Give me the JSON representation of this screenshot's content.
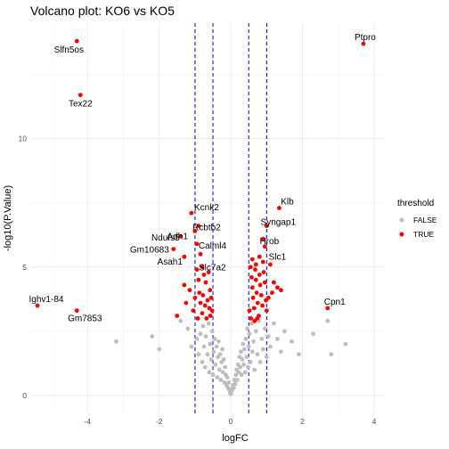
{
  "chart_data": {
    "type": "scatter",
    "title": "Volcano plot: KO6 vs KO5",
    "xlabel": "logFC",
    "ylabel": "-log10(P.Value)",
    "xlim": [
      -5.6,
      4.3
    ],
    "ylim": [
      -0.7,
      14.5
    ],
    "xticks": [
      -4,
      -2,
      0,
      2,
      4
    ],
    "yticks": [
      0,
      5,
      10
    ],
    "grid": true,
    "vlines": [
      {
        "x": -1.0,
        "color": "#00008b"
      },
      {
        "x": -0.5,
        "color": "#0000ff"
      },
      {
        "x": 0.5,
        "color": "#0000ff"
      },
      {
        "x": 1.0,
        "color": "#00008b"
      }
    ],
    "legend": {
      "title": "threshold",
      "placement": "right",
      "entries": [
        {
          "label": "FALSE",
          "color": "#bebebe"
        },
        {
          "label": "TRUE",
          "color": "#ff0000"
        }
      ]
    },
    "series": [
      {
        "name": "FALSE",
        "color": "#bebebe",
        "points": [
          [
            -3.2,
            2.1
          ],
          [
            -2.2,
            2.3
          ],
          [
            -2.0,
            1.8
          ],
          [
            -1.4,
            2.9
          ],
          [
            -1.2,
            2.6
          ],
          [
            -1.1,
            1.9
          ],
          [
            -0.95,
            2.2
          ],
          [
            -0.9,
            1.6
          ],
          [
            -0.85,
            2.4
          ],
          [
            -0.8,
            1.3
          ],
          [
            -0.78,
            2.7
          ],
          [
            -0.75,
            1.9
          ],
          [
            -0.72,
            1.1
          ],
          [
            -0.7,
            2.3
          ],
          [
            -0.65,
            1.6
          ],
          [
            -0.62,
            2.8
          ],
          [
            -0.6,
            0.9
          ],
          [
            -0.58,
            2.0
          ],
          [
            -0.55,
            1.4
          ],
          [
            -0.52,
            2.5
          ],
          [
            -0.5,
            0.8
          ],
          [
            -0.48,
            1.7
          ],
          [
            -0.45,
            2.2
          ],
          [
            -0.43,
            1.2
          ],
          [
            -0.4,
            1.9
          ],
          [
            -0.38,
            0.7
          ],
          [
            -0.36,
            1.5
          ],
          [
            -0.34,
            2.1
          ],
          [
            -0.32,
            1.0
          ],
          [
            -0.3,
            1.6
          ],
          [
            -0.28,
            0.6
          ],
          [
            -0.26,
            1.3
          ],
          [
            -0.24,
            1.8
          ],
          [
            -0.22,
            0.9
          ],
          [
            -0.2,
            1.4
          ],
          [
            -0.18,
            0.5
          ],
          [
            -0.16,
            1.1
          ],
          [
            -0.14,
            0.8
          ],
          [
            -0.12,
            0.4
          ],
          [
            -0.1,
            0.7
          ],
          [
            -0.08,
            0.3
          ],
          [
            -0.06,
            0.5
          ],
          [
            -0.04,
            0.2
          ],
          [
            -0.02,
            0.1
          ],
          [
            0.0,
            0.05
          ],
          [
            0.02,
            0.15
          ],
          [
            0.04,
            0.25
          ],
          [
            0.06,
            0.4
          ],
          [
            0.08,
            0.3
          ],
          [
            0.1,
            0.6
          ],
          [
            0.12,
            0.45
          ],
          [
            0.14,
            0.8
          ],
          [
            0.16,
            1.0
          ],
          [
            0.18,
            0.6
          ],
          [
            0.2,
            1.2
          ],
          [
            0.22,
            0.9
          ],
          [
            0.24,
            1.5
          ],
          [
            0.26,
            1.1
          ],
          [
            0.28,
            1.7
          ],
          [
            0.3,
            0.8
          ],
          [
            0.32,
            1.4
          ],
          [
            0.34,
            2.0
          ],
          [
            0.36,
            1.2
          ],
          [
            0.38,
            1.8
          ],
          [
            0.4,
            0.9
          ],
          [
            0.42,
            2.2
          ],
          [
            0.44,
            1.5
          ],
          [
            0.46,
            2.6
          ],
          [
            0.48,
            1.1
          ],
          [
            0.5,
            1.9
          ],
          [
            0.52,
            2.4
          ],
          [
            0.55,
            1.3
          ],
          [
            0.58,
            2.8
          ],
          [
            0.6,
            1.7
          ],
          [
            0.63,
            2.1
          ],
          [
            0.66,
            1.0
          ],
          [
            0.7,
            2.5
          ],
          [
            0.74,
            1.6
          ],
          [
            0.78,
            2.9
          ],
          [
            0.82,
            1.3
          ],
          [
            0.86,
            2.2
          ],
          [
            0.9,
            1.8
          ],
          [
            0.95,
            2.6
          ],
          [
            1.0,
            1.5
          ],
          [
            1.05,
            2.3
          ],
          [
            1.1,
            1.9
          ],
          [
            1.2,
            2.8
          ],
          [
            1.3,
            2.2
          ],
          [
            1.4,
            1.7
          ],
          [
            1.5,
            2.5
          ],
          [
            1.7,
            2.1
          ],
          [
            1.9,
            1.6
          ],
          [
            2.3,
            2.4
          ],
          [
            2.7,
            2.9
          ],
          [
            2.8,
            1.6
          ],
          [
            3.2,
            2.0
          ]
        ]
      },
      {
        "name": "TRUE",
        "color": "#ff0000",
        "points": [
          [
            -4.3,
            13.8
          ],
          [
            -4.2,
            11.7
          ],
          [
            -5.4,
            3.5
          ],
          [
            -4.3,
            3.3
          ],
          [
            3.7,
            13.7
          ],
          [
            2.7,
            3.4
          ],
          [
            -1.1,
            7.1
          ],
          [
            -1.0,
            6.4
          ],
          [
            -0.9,
            6.6
          ],
          [
            -1.4,
            6.2
          ],
          [
            -1.6,
            5.7
          ],
          [
            -1.3,
            5.4
          ],
          [
            1.35,
            7.3
          ],
          [
            1.0,
            6.6
          ],
          [
            0.9,
            6.1
          ],
          [
            0.95,
            5.8
          ],
          [
            -1.3,
            4.3
          ],
          [
            -1.15,
            4.1
          ],
          [
            -1.25,
            3.6
          ],
          [
            -1.5,
            3.1
          ],
          [
            -0.95,
            5.9
          ],
          [
            -0.85,
            5.5
          ],
          [
            -0.8,
            5.0
          ],
          [
            -0.75,
            4.7
          ],
          [
            -0.7,
            4.4
          ],
          [
            -0.62,
            4.8
          ],
          [
            -0.58,
            4.1
          ],
          [
            -0.55,
            3.8
          ],
          [
            -0.52,
            3.3
          ],
          [
            -0.95,
            4.9
          ],
          [
            -0.9,
            4.5
          ],
          [
            -0.88,
            4.0
          ],
          [
            -0.85,
            3.6
          ],
          [
            -0.8,
            3.2
          ],
          [
            -0.78,
            3.9
          ],
          [
            -0.72,
            3.5
          ],
          [
            -0.68,
            3.0
          ],
          [
            -0.65,
            3.7
          ],
          [
            -0.6,
            3.4
          ],
          [
            -0.57,
            3.1
          ],
          [
            -1.0,
            3.8
          ],
          [
            -1.05,
            3.3
          ],
          [
            -0.92,
            3.0
          ],
          [
            0.55,
            5.0
          ],
          [
            0.58,
            4.6
          ],
          [
            0.6,
            4.2
          ],
          [
            0.62,
            3.8
          ],
          [
            0.65,
            3.4
          ],
          [
            0.68,
            4.9
          ],
          [
            0.7,
            4.5
          ],
          [
            0.72,
            4.0
          ],
          [
            0.75,
            3.6
          ],
          [
            0.78,
            3.1
          ],
          [
            0.8,
            4.7
          ],
          [
            0.82,
            4.3
          ],
          [
            0.85,
            3.9
          ],
          [
            0.88,
            3.5
          ],
          [
            0.9,
            5.2
          ],
          [
            0.92,
            4.8
          ],
          [
            0.95,
            4.4
          ],
          [
            0.98,
            3.7
          ],
          [
            1.0,
            3.3
          ],
          [
            0.6,
            5.3
          ],
          [
            0.7,
            5.1
          ],
          [
            0.8,
            5.4
          ],
          [
            0.52,
            3.3
          ],
          [
            0.56,
            3.0
          ],
          [
            1.1,
            5.1
          ],
          [
            1.2,
            4.4
          ],
          [
            1.3,
            4.2
          ],
          [
            1.4,
            4.1
          ],
          [
            1.05,
            3.8
          ],
          [
            0.74,
            3.0
          ],
          [
            0.66,
            2.9
          ],
          [
            1.15,
            4.0
          ]
        ]
      }
    ],
    "labels": [
      {
        "text": "Slfn5os",
        "x": -4.3,
        "y": 13.8
      },
      {
        "text": "Tex22",
        "x": -4.2,
        "y": 11.7
      },
      {
        "text": "Ptpro",
        "x": 3.7,
        "y": 13.7
      },
      {
        "text": "Kcnk2",
        "x": -1.1,
        "y": 7.1
      },
      {
        "text": "Klb",
        "x": 1.35,
        "y": 7.3
      },
      {
        "text": "Ndufs5",
        "x": -1.4,
        "y": 6.2
      },
      {
        "text": "Rcbtb2",
        "x": -0.9,
        "y": 6.6
      },
      {
        "text": "Syngap1",
        "x": 1.0,
        "y": 6.6
      },
      {
        "text": "Calml4",
        "x": -0.9,
        "y": 6.1
      },
      {
        "text": "Adh1",
        "x": -1.0,
        "y": 6.4
      },
      {
        "text": "Hrob",
        "x": 0.9,
        "y": 6.1
      },
      {
        "text": "Gm10683",
        "x": -1.6,
        "y": 5.7
      },
      {
        "text": "Slc7a2",
        "x": -0.85,
        "y": 5.5
      },
      {
        "text": "Slc1",
        "x": 0.95,
        "y": 5.8
      },
      {
        "text": "Asah1",
        "x": -1.3,
        "y": 5.4
      },
      {
        "text": "Ighv1-84",
        "x": -5.4,
        "y": 3.5
      },
      {
        "text": "Cpn1",
        "x": 2.7,
        "y": 3.4
      },
      {
        "text": "Gm7853",
        "x": -4.3,
        "y": 3.3
      }
    ]
  }
}
